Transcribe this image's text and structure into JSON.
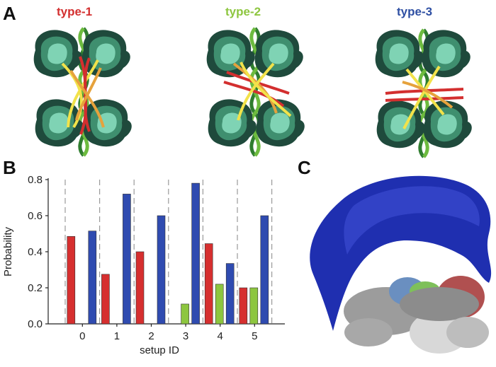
{
  "figure": {
    "panel_a": {
      "letter": "A",
      "types": [
        {
          "title": "type-1",
          "color": "#d32f2f"
        },
        {
          "title": "type-2",
          "color": "#8dc63f"
        },
        {
          "title": "type-3",
          "color": "#2e4fa3"
        }
      ]
    },
    "panel_b": {
      "letter": "B"
    },
    "panel_c": {
      "letter": "C"
    }
  },
  "chart_data": {
    "type": "bar",
    "categories": [
      "0",
      "1",
      "2",
      "3",
      "4",
      "5"
    ],
    "series": [
      {
        "color": "#d62f2f",
        "values": [
          0.485,
          0.275,
          0.4,
          0.0,
          0.445,
          0.2
        ]
      },
      {
        "color": "#8dc63f",
        "values": [
          0.0,
          0.0,
          0.0,
          0.11,
          0.22,
          0.2
        ]
      },
      {
        "color": "#2f4bb0",
        "values": [
          0.515,
          0.72,
          0.6,
          0.78,
          0.335,
          0.6
        ]
      }
    ],
    "xlabel": "setup ID",
    "ylabel": "Probability",
    "ylim": [
      0.0,
      0.8
    ],
    "yticks": [
      "0.0",
      "0.2",
      "0.4",
      "0.6",
      "0.8"
    ],
    "separator_lines": "dashed gray between groups",
    "grid": false
  }
}
